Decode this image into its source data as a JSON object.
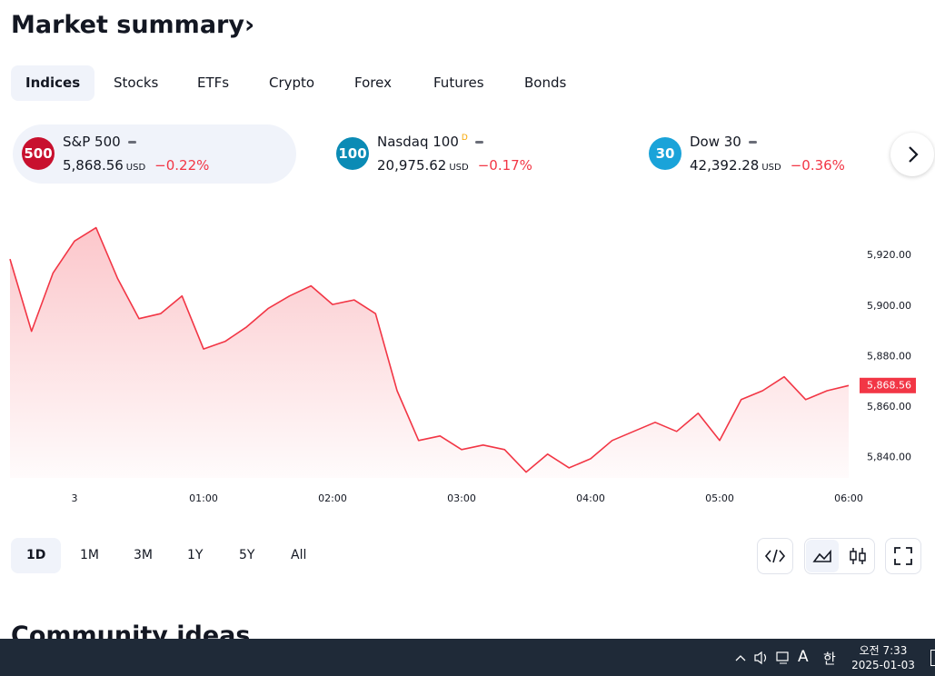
{
  "header": {
    "title": "Market summary",
    "arrow": "›"
  },
  "tabs": [
    "Indices",
    "Stocks",
    "ETFs",
    "Crypto",
    "Forex",
    "Futures",
    "Bonds"
  ],
  "tickers": [
    {
      "badge": "500",
      "name": "S&P 500",
      "flag": null,
      "price": "5,868.56",
      "currency": "USD",
      "change": "−0.22%",
      "badge_color": "#c8102e"
    },
    {
      "badge": "100",
      "name": "Nasdaq 100",
      "flag": "D",
      "price": "20,975.62",
      "currency": "USD",
      "change": "−0.17%",
      "badge_color": "#0b8bb5"
    },
    {
      "badge": "30",
      "name": "Dow 30",
      "flag": null,
      "price": "42,392.28",
      "currency": "USD",
      "change": "−0.36%",
      "badge_color": "#1aa3d9"
    }
  ],
  "chart_data": {
    "type": "line",
    "color": "#f23645",
    "x": [
      "23:30",
      "23:40",
      "23:50",
      "00:00",
      "00:10",
      "00:20",
      "00:30",
      "00:40",
      "00:50",
      "01:00",
      "01:10",
      "01:20",
      "01:30",
      "01:40",
      "01:50",
      "02:00",
      "02:10",
      "02:20",
      "02:30",
      "02:40",
      "02:50",
      "03:00",
      "03:10",
      "03:20",
      "03:30",
      "03:40",
      "03:50",
      "04:00",
      "04:10",
      "04:20",
      "04:30",
      "04:40",
      "04:50",
      "05:00",
      "05:10",
      "05:20",
      "05:30",
      "05:40",
      "05:50",
      "06:00"
    ],
    "values": [
      5918.6,
      5890,
      5913,
      5925.7,
      5931,
      5911,
      5895,
      5897,
      5904,
      5883,
      5886,
      5891.7,
      5899,
      5904,
      5908,
      5900.6,
      5902.4,
      5897,
      5866.5,
      5846.8,
      5848.6,
      5843.2,
      5845,
      5843.2,
      5834.3,
      5841.4,
      5836,
      5839.6,
      5846.8,
      5850.4,
      5854,
      5850.4,
      5857.6,
      5846.8,
      5863,
      5866.5,
      5872,
      5863,
      5866.5,
      5868.56
    ],
    "price_label": "5,868.56",
    "ylim": [
      5832,
      5933
    ],
    "yticks": [
      {
        "value": 5840,
        "label": "5,840.00"
      },
      {
        "value": 5860,
        "label": "5,860.00"
      },
      {
        "value": 5880,
        "label": "5,880.00"
      },
      {
        "value": 5900,
        "label": "5,900.00"
      },
      {
        "value": 5920,
        "label": "5,920.00"
      }
    ],
    "xticks": [
      {
        "value": "00:00",
        "label": "3"
      },
      "01:00",
      "02:00",
      "03:00",
      "04:00",
      "05:00",
      "06:00"
    ],
    "grid": false
  },
  "ranges": [
    "1D",
    "1M",
    "3M",
    "1Y",
    "5Y",
    "All"
  ],
  "next_section": "Community ideas",
  "taskbar": {
    "keyboard": "A",
    "ime": "한",
    "time": "오전 7:33",
    "date": "2025-01-03"
  }
}
